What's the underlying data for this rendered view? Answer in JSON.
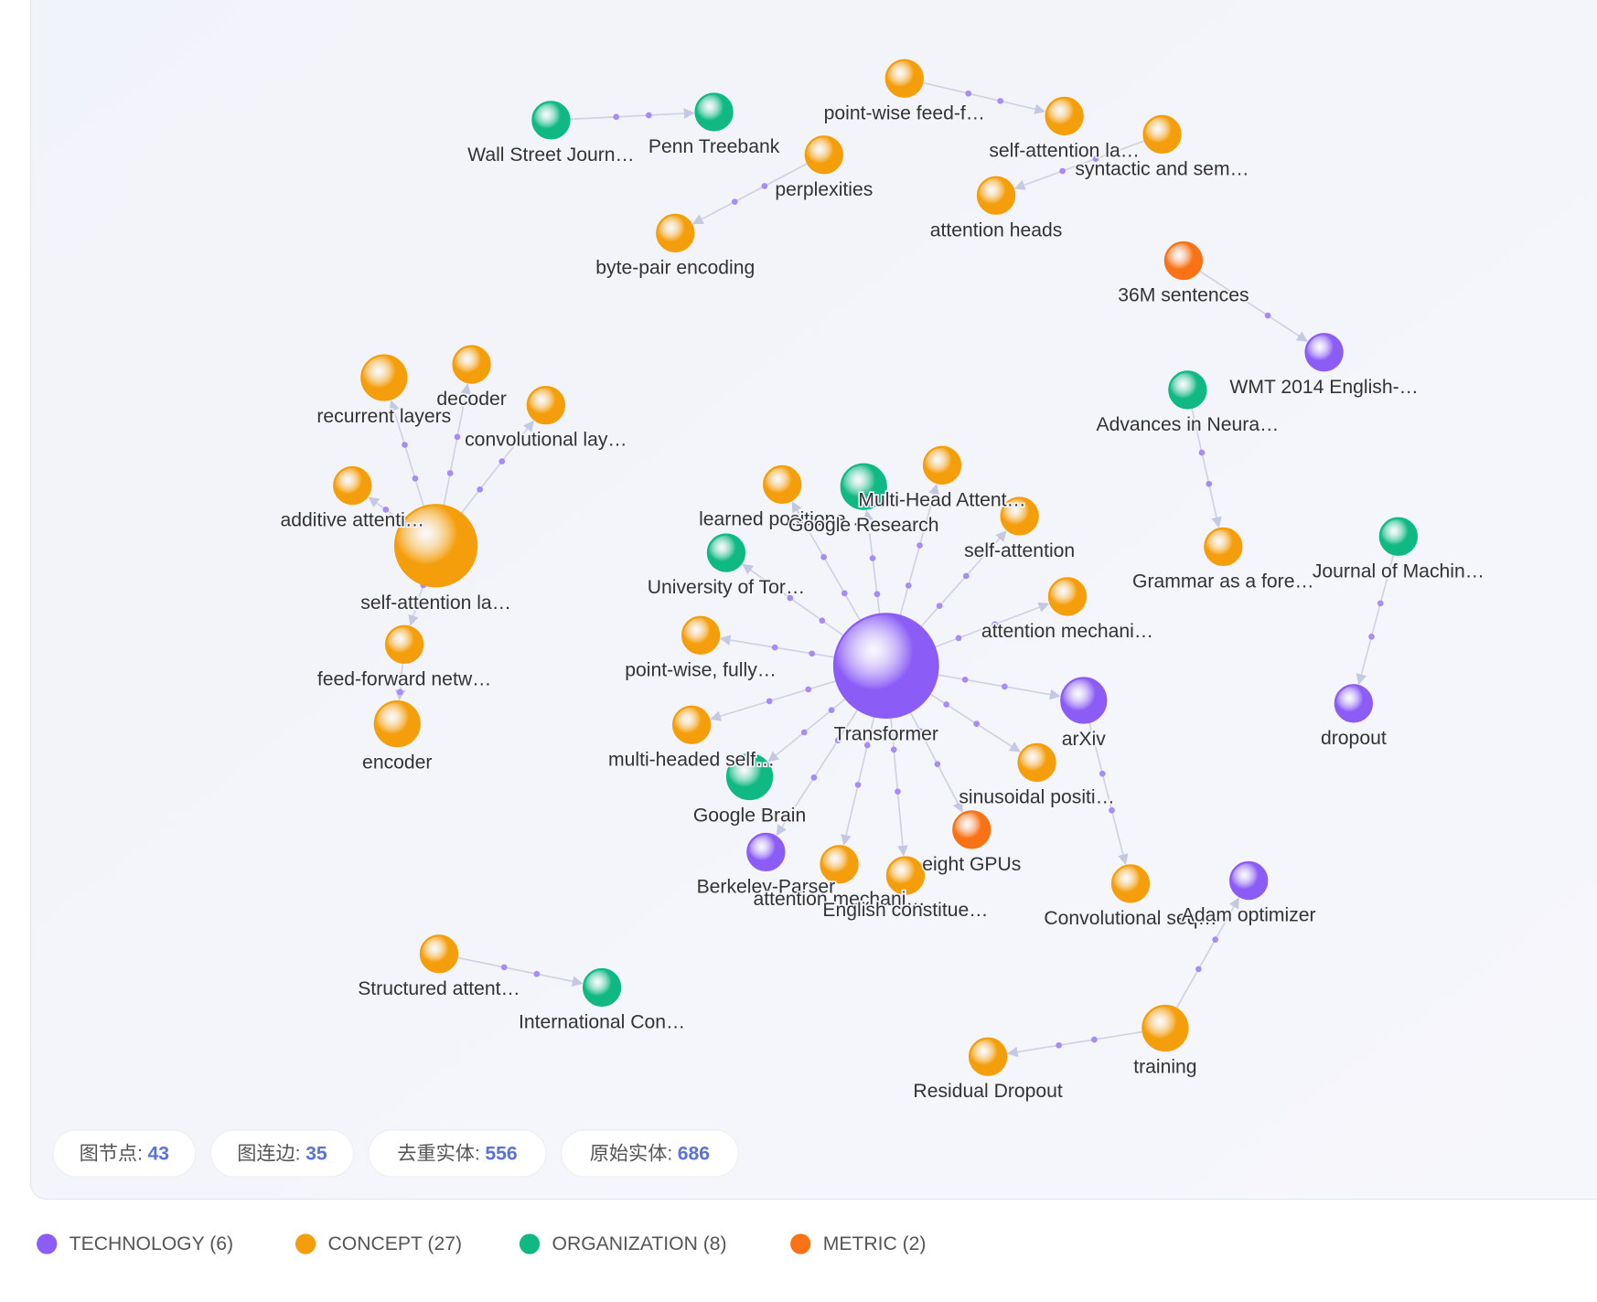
{
  "graph": {
    "nodes": [
      {
        "label": "Wall Street Journ…",
        "color": "#10b981"
      },
      {
        "label": "Penn Treebank",
        "color": "#10b981"
      },
      {
        "label": "point-wise feed-f…",
        "color": "#f59e0b"
      },
      {
        "label": "self-attention la…",
        "color": "#f59e0b"
      },
      {
        "label": "syntactic and sem…",
        "color": "#f59e0b"
      },
      {
        "label": "perplexities",
        "color": "#f59e0b"
      },
      {
        "label": "attention heads",
        "color": "#f59e0b"
      },
      {
        "label": "byte-pair encoding",
        "color": "#f59e0b"
      },
      {
        "label": "36M sentences",
        "color": "#f97316"
      },
      {
        "label": "WMT 2014 English-…",
        "color": "#8b5cf6"
      },
      {
        "label": "Advances in Neura…",
        "color": "#10b981"
      },
      {
        "label": "recurrent layers",
        "color": "#f59e0b"
      },
      {
        "label": "decoder",
        "color": "#f59e0b"
      },
      {
        "label": "convolutional lay…",
        "color": "#f59e0b"
      },
      {
        "label": "additive attenti…",
        "color": "#f59e0b"
      },
      {
        "label": "self-attention la…",
        "color": "#f59e0b"
      },
      {
        "label": "feed-forward netw…",
        "color": "#f59e0b"
      },
      {
        "label": "encoder",
        "color": "#f59e0b"
      },
      {
        "label": "learned positiona…",
        "color": "#f59e0b"
      },
      {
        "label": "Google Research",
        "color": "#10b981"
      },
      {
        "label": "Multi-Head Attent…",
        "color": "#f59e0b"
      },
      {
        "label": "self-attention",
        "color": "#f59e0b"
      },
      {
        "label": "University of Tor…",
        "color": "#10b981"
      },
      {
        "label": "attention mechani…",
        "color": "#f59e0b"
      },
      {
        "label": "point-wise, fully…",
        "color": "#f59e0b"
      },
      {
        "label": "Transformer",
        "color": "#8b5cf6"
      },
      {
        "label": "arXiv",
        "color": "#8b5cf6"
      },
      {
        "label": "multi-headed self…",
        "color": "#f59e0b"
      },
      {
        "label": "Google Brain",
        "color": "#10b981"
      },
      {
        "label": "sinusoidal positi…",
        "color": "#f59e0b"
      },
      {
        "label": "eight GPUs",
        "color": "#f97316"
      },
      {
        "label": "Berkeley-Parser",
        "color": "#8b5cf6"
      },
      {
        "label": "attention mechani…",
        "color": "#f59e0b"
      },
      {
        "label": "English constitue…",
        "color": "#f59e0b"
      },
      {
        "label": "Convolutional seq…",
        "color": "#f59e0b"
      },
      {
        "label": "Adam optimizer",
        "color": "#8b5cf6"
      },
      {
        "label": "Grammar as a fore…",
        "color": "#f59e0b"
      },
      {
        "label": "Journal of Machin…",
        "color": "#10b981"
      },
      {
        "label": "dropout",
        "color": "#8b5cf6"
      },
      {
        "label": "Structured attent…",
        "color": "#f59e0b"
      },
      {
        "label": "International Con…",
        "color": "#10b981"
      },
      {
        "label": "training",
        "color": "#f59e0b"
      },
      {
        "label": "Residual Dropout",
        "color": "#f59e0b"
      }
    ]
  },
  "stats": [
    {
      "label": "图节点:",
      "value": 43
    },
    {
      "label": "图连边:",
      "value": 35
    },
    {
      "label": "去重实体:",
      "value": 556
    },
    {
      "label": "原始实体:",
      "value": 686
    }
  ],
  "legend": [
    {
      "label": "TECHNOLOGY (6)",
      "color": "#8b5cf6"
    },
    {
      "label": "CONCEPT (27)",
      "color": "#f59e0b"
    },
    {
      "label": "ORGANIZATION (8)",
      "color": "#10b981"
    },
    {
      "label": "METRIC (2)",
      "color": "#f97316"
    }
  ]
}
